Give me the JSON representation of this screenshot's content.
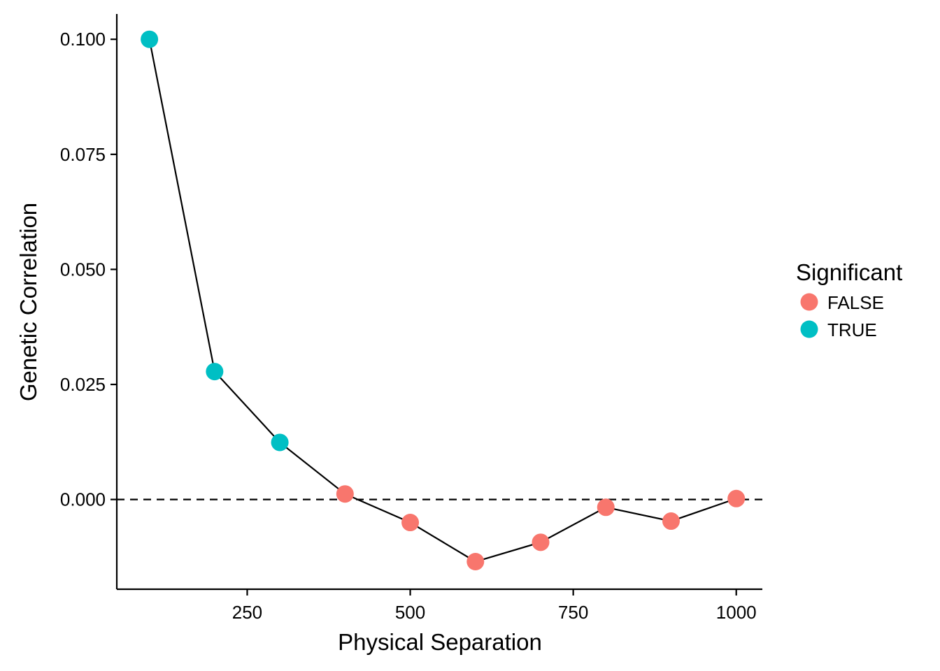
{
  "chart_data": {
    "type": "scatter",
    "title": "",
    "xlabel": "Physical Separation",
    "ylabel": "Genetic Correlation",
    "xlim": [
      50,
      1040
    ],
    "ylim": [
      -0.0195,
      0.1055
    ],
    "xticks": [
      250,
      500,
      750,
      1000
    ],
    "xtick_labels": [
      "250",
      "500",
      "750",
      "1000"
    ],
    "yticks": [
      0.0,
      0.025,
      0.05,
      0.075,
      0.1
    ],
    "ytick_labels": [
      "0.000",
      "0.025",
      "0.050",
      "0.075",
      "0.100"
    ],
    "reference_line": {
      "y": 0.0,
      "style": "dashed"
    },
    "connecting_line": true,
    "grid": false,
    "legend": {
      "title": "Significant",
      "position": "right",
      "entries": [
        {
          "label": "FALSE",
          "color": "#F8766D"
        },
        {
          "label": "TRUE",
          "color": "#00BFC4"
        }
      ]
    },
    "points": [
      {
        "x": 100,
        "y": 0.1,
        "significant": "TRUE"
      },
      {
        "x": 200,
        "y": 0.0278,
        "significant": "TRUE"
      },
      {
        "x": 300,
        "y": 0.0124,
        "significant": "TRUE"
      },
      {
        "x": 400,
        "y": 0.0012,
        "significant": "FALSE"
      },
      {
        "x": 500,
        "y": -0.005,
        "significant": "FALSE"
      },
      {
        "x": 600,
        "y": -0.0135,
        "significant": "FALSE"
      },
      {
        "x": 700,
        "y": -0.0093,
        "significant": "FALSE"
      },
      {
        "x": 800,
        "y": -0.0017,
        "significant": "FALSE"
      },
      {
        "x": 900,
        "y": -0.0047,
        "significant": "FALSE"
      },
      {
        "x": 1000,
        "y": 0.0002,
        "significant": "FALSE"
      }
    ]
  }
}
